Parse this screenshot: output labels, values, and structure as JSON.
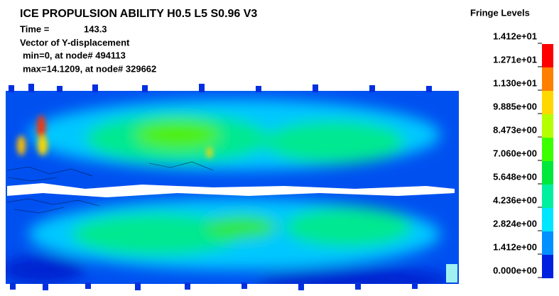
{
  "header": {
    "title": "ICE PROPULSION ABILITY H0.5 L5 S0.96 V3",
    "time_label": "Time =",
    "time_value": "143.3",
    "quantity": "Vector of Y-displacement",
    "min": "min=0, at node# 494113",
    "max": "max=14.1209, at node# 329662"
  },
  "legend": {
    "title": "Fringe Levels",
    "levels": [
      "1.412e+01",
      "1.271e+01",
      "1.130e+01",
      "9.885e+00",
      "8.473e+00",
      "7.060e+00",
      "5.648e+00",
      "4.236e+00",
      "2.824e+00",
      "1.412e+00",
      "0.000e+00"
    ],
    "colors": [
      "#ff0000",
      "#ff7f00",
      "#ffd800",
      "#b4ff00",
      "#3cff00",
      "#00e83c",
      "#00f0a0",
      "#00e6ff",
      "#0090ff",
      "#0020e0"
    ]
  }
}
